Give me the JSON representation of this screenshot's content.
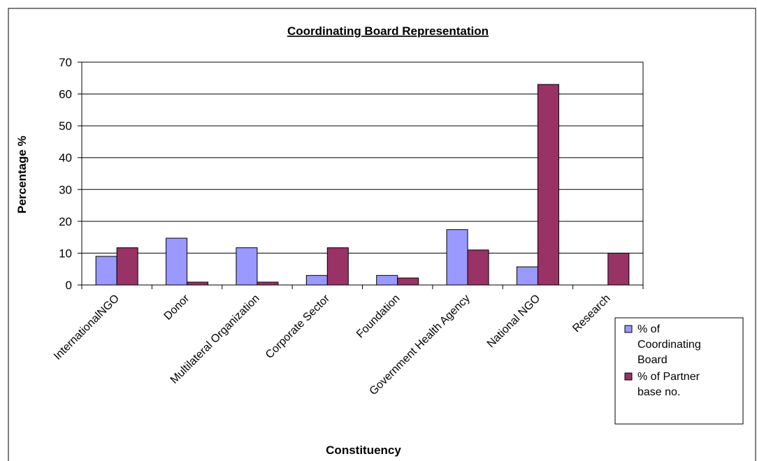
{
  "chart_data": {
    "type": "bar",
    "title": "Coordinating Board Representation",
    "x_label": "Constituency",
    "y_label": "Percentage %",
    "categories": [
      "InternationalNGO",
      "Donor",
      "Multilateral Organization",
      "Corporate Sector",
      "Foundation",
      "Government Health Agency",
      "National NGO",
      "Research"
    ],
    "series": [
      {
        "name": "% of Coordinating Board",
        "color": "#9999ff",
        "values": [
          9,
          14.7,
          11.7,
          3,
          3,
          17.4,
          5.7,
          0
        ]
      },
      {
        "name": "% of Partner base no.",
        "color": "#993366",
        "values": [
          11.7,
          0.9,
          0.9,
          11.7,
          2.2,
          11,
          63,
          10
        ]
      }
    ],
    "ylim": [
      0,
      70
    ],
    "yticks": [
      0,
      10,
      20,
      30,
      40,
      50,
      60,
      70
    ],
    "grid": true,
    "legend": "right"
  }
}
